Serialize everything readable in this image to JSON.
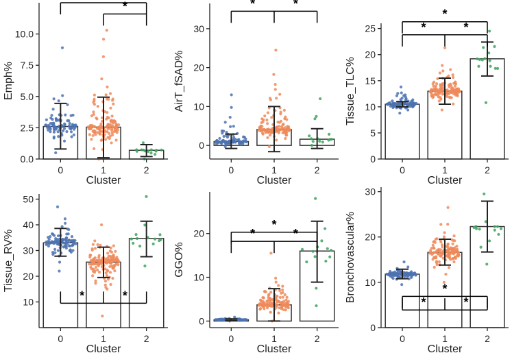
{
  "chart_data": [
    {
      "type": "bar",
      "overlay": "swarm",
      "panel": "Emph%",
      "xlabel": "Cluster",
      "ylabel": "Emph%",
      "categories": [
        "0",
        "1",
        "2"
      ],
      "values": [
        2.6,
        2.55,
        0.7
      ],
      "error_low": [
        0.8,
        0.1,
        0.2
      ],
      "error_high": [
        4.45,
        4.95,
        1.15
      ],
      "point_range": [
        [
          0.5,
          8.9
        ],
        [
          0.0,
          10.3
        ],
        [
          0.0,
          1.3
        ]
      ],
      "point_counts": [
        90,
        130,
        14
      ],
      "ylim": [
        0,
        12.5
      ],
      "yticks": [
        0.0,
        2.5,
        5.0,
        7.5,
        10.0
      ],
      "ytick_labels": [
        "0.0",
        "2.5",
        "5.0",
        "7.5",
        "10.0"
      ],
      "significance": [
        {
          "from": "0",
          "to": "2",
          "level": 12.5,
          "direction": "down",
          "label": "*"
        },
        {
          "from": "1",
          "to": "2",
          "level": 11.6,
          "direction": "down",
          "label": "*"
        }
      ]
    },
    {
      "type": "bar",
      "overlay": "swarm",
      "panel": "AirT_fSAD%",
      "xlabel": "Cluster",
      "ylabel": "AirT_fSAD%",
      "categories": [
        "0",
        "1",
        "2"
      ],
      "values": [
        1.0,
        4.1,
        1.6
      ],
      "error_low": [
        -0.8,
        -1.6,
        -0.8
      ],
      "error_high": [
        2.9,
        10.0,
        4.3
      ],
      "point_range": [
        [
          -0.3,
          13.0
        ],
        [
          -0.3,
          24.5
        ],
        [
          0.0,
          12.0
        ]
      ],
      "point_counts": [
        90,
        130,
        14
      ],
      "ylim": [
        -3.5,
        36.5
      ],
      "yticks": [
        0,
        10,
        20,
        30
      ],
      "ytick_labels": [
        "0",
        "10",
        "20",
        "30"
      ],
      "significance": [
        {
          "from": "0",
          "to": "2",
          "level": 34.5,
          "direction": "down",
          "label": "*"
        },
        {
          "from": "1",
          "to": "1",
          "level": 34.5,
          "direction": "down",
          "label": "*"
        }
      ]
    },
    {
      "type": "bar",
      "overlay": "swarm",
      "panel": "Tissue_TLC%",
      "xlabel": "Cluster",
      "ylabel": "Tissue_TLC%",
      "categories": [
        "0",
        "1",
        "2"
      ],
      "values": [
        10.5,
        13.0,
        19.2
      ],
      "error_low": [
        10.0,
        10.5,
        15.9
      ],
      "error_high": [
        11.0,
        15.5,
        22.4
      ],
      "point_range": [
        [
          8.8,
          13.8
        ],
        [
          9.4,
          21.3
        ],
        [
          10.8,
          24.5
        ]
      ],
      "point_counts": [
        100,
        130,
        14
      ],
      "ylim": [
        0,
        26
      ],
      "yticks": [
        0,
        5,
        10,
        15,
        20,
        25
      ],
      "ytick_labels": [
        "0",
        "5",
        "10",
        "15",
        "20",
        "25"
      ],
      "significance": [
        {
          "from": "0",
          "to": "2",
          "level": 23.8,
          "direction": "down",
          "label": "*"
        },
        {
          "from": "1",
          "to": "1",
          "level": 23.8,
          "direction": "down",
          "label": "*"
        },
        {
          "from": "0",
          "to": "2",
          "level": 26.3,
          "direction": "down",
          "label": "*"
        }
      ]
    },
    {
      "type": "bar",
      "overlay": "swarm",
      "panel": "Tissue_RV%",
      "xlabel": "Cluster",
      "ylabel": "Tissue_RV%",
      "categories": [
        "0",
        "1",
        "2"
      ],
      "values": [
        33.0,
        25.5,
        34.7
      ],
      "error_low": [
        27.8,
        19.5,
        27.6
      ],
      "error_high": [
        38.6,
        31.3,
        41.4
      ],
      "point_range": [
        [
          22.0,
          47.0
        ],
        [
          4.5,
          40.0
        ],
        [
          24.0,
          51.0
        ]
      ],
      "point_counts": [
        100,
        140,
        14
      ],
      "ylim": [
        0,
        52
      ],
      "yticks": [
        10,
        20,
        30,
        40,
        50
      ],
      "ytick_labels": [
        "10",
        "20",
        "30",
        "40",
        "50"
      ],
      "significance": [
        {
          "from": "0",
          "to": "2",
          "level": 9.5,
          "direction": "up",
          "label": "*"
        },
        {
          "from": "1",
          "to": "1",
          "level": 9.5,
          "direction": "up",
          "label": "*"
        }
      ]
    },
    {
      "type": "bar",
      "overlay": "swarm",
      "panel": "GGO%",
      "xlabel": "Cluster",
      "ylabel": "GGO%",
      "categories": [
        "0",
        "1",
        "2"
      ],
      "values": [
        0.3,
        3.7,
        16.0
      ],
      "error_low": [
        0.1,
        0.0,
        8.9
      ],
      "error_high": [
        0.5,
        7.4,
        22.8
      ],
      "point_range": [
        [
          0.0,
          0.9
        ],
        [
          0.0,
          15.5
        ],
        [
          3.5,
          28.0
        ]
      ],
      "point_counts": [
        100,
        130,
        14
      ],
      "ylim": [
        -1.5,
        29.5
      ],
      "yticks": [
        0,
        10,
        20
      ],
      "ytick_labels": [
        "0",
        "10",
        "20"
      ],
      "significance": [
        {
          "from": "0",
          "to": "2",
          "level": 18.2,
          "direction": "down",
          "label": "*"
        },
        {
          "from": "1",
          "to": "1",
          "level": 18.2,
          "direction": "down",
          "label": "*"
        },
        {
          "from": "0",
          "to": "2",
          "level": 20.3,
          "direction": "down",
          "label": "*"
        }
      ]
    },
    {
      "type": "bar",
      "overlay": "swarm",
      "panel": "Bronchovascular%",
      "xlabel": "Cluster",
      "ylabel": "Bronchovascular%",
      "categories": [
        "0",
        "1",
        "2"
      ],
      "values": [
        11.8,
        16.6,
        22.3
      ],
      "error_low": [
        10.8,
        13.8,
        16.7
      ],
      "error_high": [
        12.9,
        19.5,
        27.9
      ],
      "point_range": [
        [
          9.5,
          14.5
        ],
        [
          10.0,
          26.5
        ],
        [
          14.0,
          29.5
        ]
      ],
      "point_counts": [
        100,
        140,
        14
      ],
      "ylim": [
        0,
        31
      ],
      "yticks": [
        0,
        10,
        20,
        30
      ],
      "ytick_labels": [
        "0",
        "10",
        "20",
        "30"
      ],
      "significance": [
        {
          "from": "0",
          "to": "2",
          "level": 3.9,
          "direction": "up",
          "label": "*"
        },
        {
          "from": "1",
          "to": "1",
          "level": 3.9,
          "direction": "up",
          "label": "*"
        },
        {
          "from": "0",
          "to": "2",
          "level": 6.9,
          "direction": "down",
          "label": "*"
        }
      ]
    }
  ],
  "colors": {
    "cluster_0": "#4c72b0",
    "cluster_1": "#ee8a5a",
    "cluster_2": "#3fa35e",
    "axis": "#222222",
    "bar_edge": "#333333"
  }
}
